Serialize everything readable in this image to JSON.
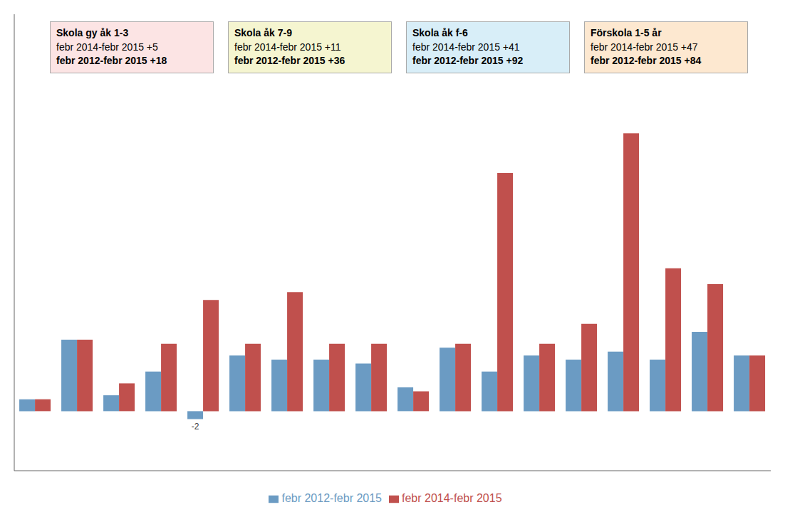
{
  "chart_data": {
    "type": "bar",
    "categories": [
      null,
      null,
      null,
      null,
      null,
      null,
      null,
      null,
      null,
      null,
      null,
      null,
      null,
      null,
      null,
      null,
      null,
      null
    ],
    "series": [
      {
        "name": "febr 2012-febr 2015",
        "color": "#6b9bc3",
        "values": [
          3,
          18,
          4,
          10,
          -2,
          14,
          13,
          13,
          12,
          6,
          16,
          10,
          14,
          13,
          15,
          13,
          20,
          14
        ],
        "value_labels": [
          null,
          null,
          null,
          null,
          "-2",
          null,
          null,
          null,
          null,
          null,
          null,
          null,
          null,
          null,
          null,
          null,
          null,
          null
        ]
      },
      {
        "name": "febr 2014-febr 2015",
        "color": "#c0504d",
        "values": [
          3,
          18,
          7,
          17,
          28,
          17,
          30,
          17,
          17,
          5,
          17,
          60,
          17,
          22,
          70,
          36,
          32,
          14
        ]
      }
    ],
    "ylim": [
      -15,
      100
    ],
    "yticks": [],
    "grid": false,
    "tick_labels": false,
    "legend": "bottom",
    "annotations": [
      {
        "title": "Skola gy åk 1-3",
        "lines": [
          "febr 2014-febr 2015 +5",
          "febr 2012-febr 2015 +18"
        ],
        "color": "#fce4e4"
      },
      {
        "title": "Skola åk 7-9",
        "lines": [
          "febr 2014-febr 2015 +11",
          "febr 2012-febr 2015 +36"
        ],
        "color": "#f5f5d0"
      },
      {
        "title": "Skola åk f-6",
        "lines": [
          "febr 2014-febr 2015 +41",
          "febr 2012-febr 2015 +92"
        ],
        "color": "#d8eef8"
      },
      {
        "title": "Förskola 1-5 år",
        "lines": [
          "febr 2014-febr 2015 +47",
          "febr 2012-febr 2015 +84"
        ],
        "color": "#fde8d0"
      }
    ]
  }
}
